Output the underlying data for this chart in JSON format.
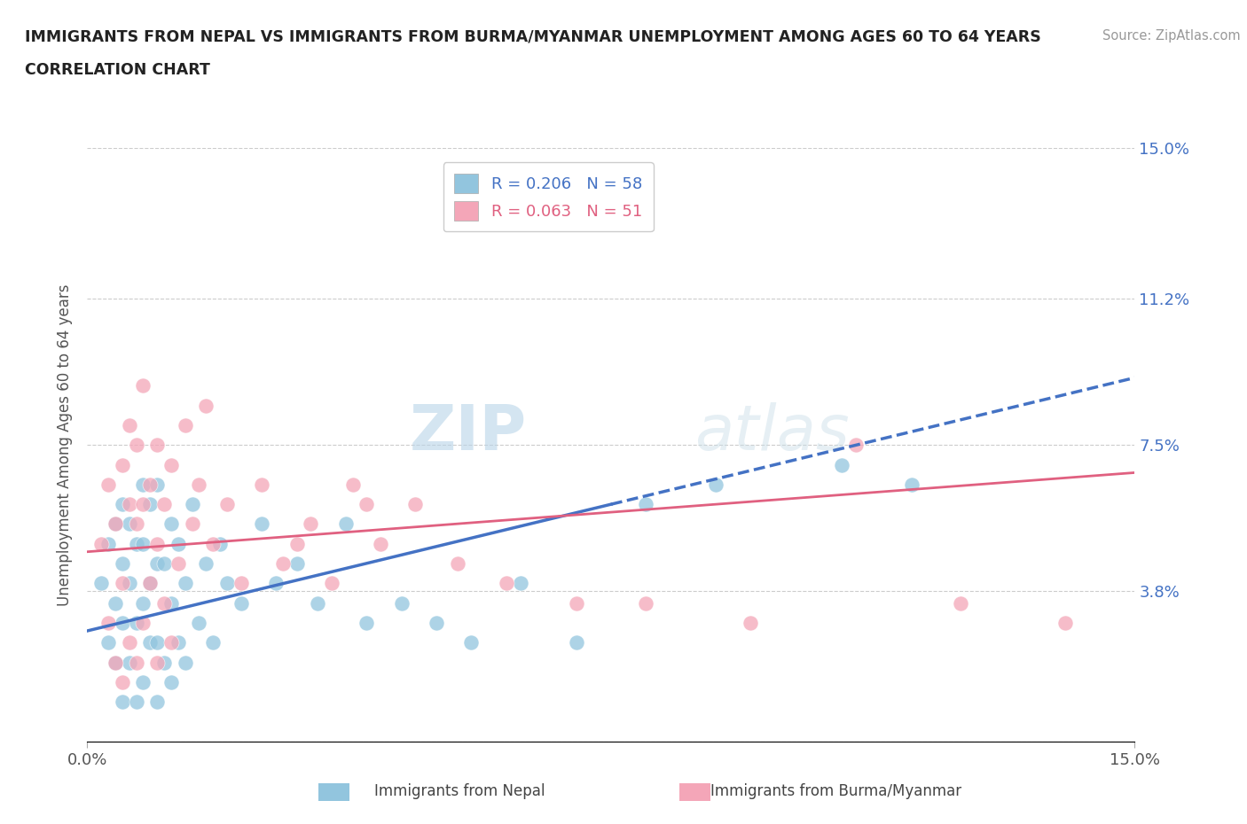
{
  "title_line1": "IMMIGRANTS FROM NEPAL VS IMMIGRANTS FROM BURMA/MYANMAR UNEMPLOYMENT AMONG AGES 60 TO 64 YEARS",
  "title_line2": "CORRELATION CHART",
  "source": "Source: ZipAtlas.com",
  "ylabel": "Unemployment Among Ages 60 to 64 years",
  "xmin": 0.0,
  "xmax": 0.15,
  "ymin": 0.0,
  "ymax": 0.15,
  "yticks": [
    0.0,
    0.038,
    0.075,
    0.112,
    0.15
  ],
  "xticks": [
    0.0,
    0.15
  ],
  "xtick_labels": [
    "0.0%",
    "15.0%"
  ],
  "right_ytick_labels": [
    "15.0%",
    "11.2%",
    "7.5%",
    "3.8%"
  ],
  "right_ytick_values": [
    0.15,
    0.112,
    0.075,
    0.038
  ],
  "nepal_R": 0.206,
  "nepal_N": 58,
  "burma_R": 0.063,
  "burma_N": 51,
  "nepal_color": "#92c5de",
  "burma_color": "#f4a6b8",
  "nepal_trend_color": "#4472c4",
  "burma_trend_color": "#e06080",
  "legend_label_nepal": "Immigrants from Nepal",
  "legend_label_burma": "Immigrants from Burma/Myanmar",
  "watermark_zip": "ZIP",
  "watermark_atlas": "atlas",
  "nepal_x": [
    0.002,
    0.003,
    0.003,
    0.004,
    0.004,
    0.004,
    0.005,
    0.005,
    0.005,
    0.005,
    0.006,
    0.006,
    0.006,
    0.007,
    0.007,
    0.007,
    0.008,
    0.008,
    0.008,
    0.008,
    0.009,
    0.009,
    0.009,
    0.01,
    0.01,
    0.01,
    0.01,
    0.011,
    0.011,
    0.012,
    0.012,
    0.012,
    0.013,
    0.013,
    0.014,
    0.014,
    0.015,
    0.016,
    0.017,
    0.018,
    0.019,
    0.02,
    0.022,
    0.025,
    0.027,
    0.03,
    0.033,
    0.037,
    0.04,
    0.045,
    0.05,
    0.055,
    0.062,
    0.07,
    0.08,
    0.09,
    0.108,
    0.118
  ],
  "nepal_y": [
    0.04,
    0.025,
    0.05,
    0.02,
    0.035,
    0.055,
    0.01,
    0.03,
    0.045,
    0.06,
    0.02,
    0.04,
    0.055,
    0.01,
    0.03,
    0.05,
    0.015,
    0.035,
    0.05,
    0.065,
    0.025,
    0.04,
    0.06,
    0.01,
    0.025,
    0.045,
    0.065,
    0.02,
    0.045,
    0.015,
    0.035,
    0.055,
    0.025,
    0.05,
    0.02,
    0.04,
    0.06,
    0.03,
    0.045,
    0.025,
    0.05,
    0.04,
    0.035,
    0.055,
    0.04,
    0.045,
    0.035,
    0.055,
    0.03,
    0.035,
    0.03,
    0.025,
    0.04,
    0.025,
    0.06,
    0.065,
    0.07,
    0.065
  ],
  "burma_x": [
    0.002,
    0.003,
    0.003,
    0.004,
    0.004,
    0.005,
    0.005,
    0.005,
    0.006,
    0.006,
    0.006,
    0.007,
    0.007,
    0.007,
    0.008,
    0.008,
    0.008,
    0.009,
    0.009,
    0.01,
    0.01,
    0.01,
    0.011,
    0.011,
    0.012,
    0.012,
    0.013,
    0.014,
    0.015,
    0.016,
    0.017,
    0.018,
    0.02,
    0.022,
    0.025,
    0.028,
    0.032,
    0.035,
    0.038,
    0.042,
    0.047,
    0.053,
    0.06,
    0.07,
    0.08,
    0.095,
    0.11,
    0.125,
    0.14,
    0.03,
    0.04
  ],
  "burma_y": [
    0.05,
    0.03,
    0.065,
    0.02,
    0.055,
    0.015,
    0.04,
    0.07,
    0.025,
    0.06,
    0.08,
    0.02,
    0.055,
    0.075,
    0.03,
    0.06,
    0.09,
    0.04,
    0.065,
    0.02,
    0.05,
    0.075,
    0.035,
    0.06,
    0.025,
    0.07,
    0.045,
    0.08,
    0.055,
    0.065,
    0.085,
    0.05,
    0.06,
    0.04,
    0.065,
    0.045,
    0.055,
    0.04,
    0.065,
    0.05,
    0.06,
    0.045,
    0.04,
    0.035,
    0.035,
    0.03,
    0.075,
    0.035,
    0.03,
    0.05,
    0.06
  ],
  "nepal_trend_x0": 0.0,
  "nepal_trend_y0": 0.028,
  "nepal_trend_x1": 0.15,
  "nepal_trend_y1": 0.092,
  "burma_trend_x0": 0.0,
  "burma_trend_y0": 0.048,
  "burma_trend_x1": 0.15,
  "burma_trend_y1": 0.068
}
